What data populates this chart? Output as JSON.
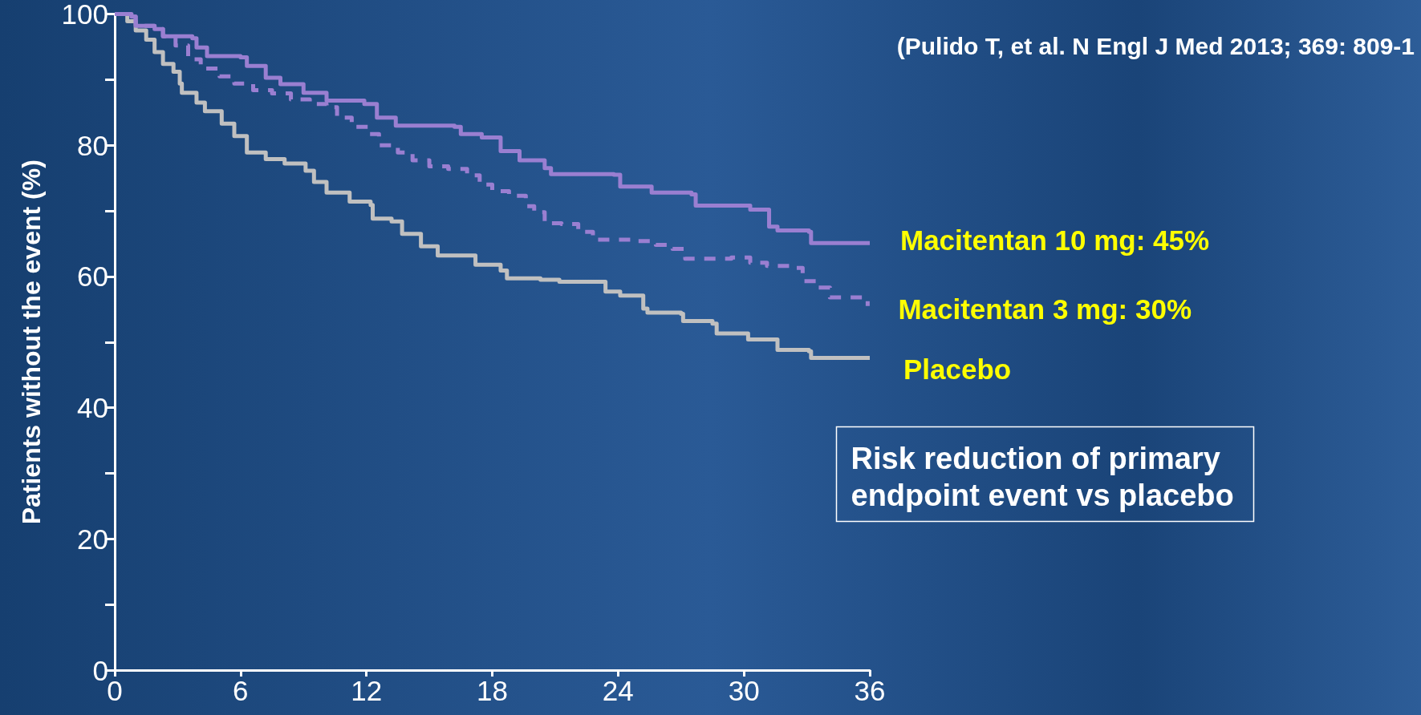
{
  "chart_data": {
    "type": "step",
    "ylabel": "Patients without the event (%)",
    "xlim": [
      0,
      36
    ],
    "xticks": [
      0,
      6,
      12,
      18,
      24,
      30,
      36
    ],
    "ylim": [
      0,
      100
    ],
    "yticks": [
      0,
      {
        "value": 10,
        "label": null
      },
      20,
      {
        "value": 30,
        "label": null
      },
      40,
      {
        "value": 50,
        "label": null
      },
      60,
      {
        "value": 70,
        "label": null
      },
      80,
      {
        "value": 90,
        "label": null
      },
      100
    ],
    "grid": false,
    "legend": false,
    "marker": "none",
    "annotations": [
      "(Pulido T, et al. N Engl J Med 2013; 369: 809-1",
      "Risk reduction of primary endpoint event vs placebo"
    ],
    "series": [
      {
        "name": "Macitentan 10 mg: 45%",
        "color": "#9a7fd1",
        "line_style": "solid",
        "x": [
          0,
          0.8,
          1.0,
          1.9,
          2.3,
          3.7,
          3.9,
          4.4,
          6.0,
          6.3,
          7.2,
          7.9,
          9.0,
          10.1,
          11.9,
          12.5,
          13.4,
          16.2,
          16.5,
          17.5,
          18.4,
          19.3,
          20.5,
          20.8,
          23.8,
          24.1,
          25.6,
          27.5,
          27.7,
          30.3,
          31.2,
          31.6,
          33.1,
          33.2,
          36.0
        ],
        "values": [
          100,
          99.6,
          98.2,
          97.7,
          96.6,
          96.3,
          94.9,
          93.6,
          93.4,
          92.1,
          90.3,
          89.3,
          88,
          86.8,
          86.3,
          84.2,
          83,
          82.8,
          81.7,
          81.2,
          79.1,
          77.7,
          76.5,
          75.6,
          75.5,
          73.7,
          72.8,
          72.5,
          70.8,
          70.2,
          67.6,
          67,
          66.8,
          65.1,
          65.1
        ]
      },
      {
        "name": "Macitentan 3 mg: 30%",
        "color": "#9a7fd1",
        "line_style": "dashed",
        "x": [
          0,
          0.8,
          1.0,
          1.9,
          2.3,
          2.9,
          3.5,
          4.1,
          5.0,
          5.7,
          6.6,
          7.5,
          8.4,
          9.3,
          10.1,
          10.6,
          11.3,
          12.1,
          12.6,
          13.5,
          14.2,
          15.0,
          15.9,
          16.8,
          17.4,
          18.0,
          18.8,
          19.6,
          20.0,
          20.5,
          21.3,
          22.1,
          22.8,
          24.9,
          25.8,
          26.6,
          27.2,
          29.4,
          30.3,
          31.1,
          32.3,
          32.8,
          33.5,
          34.1,
          35.2,
          35.9
        ],
        "values": [
          100,
          99.6,
          98.2,
          97.7,
          96.6,
          95.2,
          93.1,
          91.7,
          90.5,
          89.4,
          88.4,
          87.9,
          87,
          86.3,
          85.8,
          84.2,
          82.8,
          81.7,
          80,
          78.9,
          77.7,
          76.8,
          76.4,
          75.4,
          74,
          73,
          72.3,
          70.7,
          69.8,
          68.1,
          68,
          66.8,
          65.6,
          65.4,
          64.8,
          64.2,
          62.7,
          62.9,
          62.1,
          61.6,
          61.3,
          59.3,
          58.3,
          56.8,
          56.8,
          55.5
        ]
      },
      {
        "name": "Placebo",
        "color": "#c0c0c0",
        "line_style": "solid",
        "x": [
          0,
          0.6,
          1.0,
          1.5,
          1.9,
          2.3,
          2.8,
          3.1,
          3.2,
          3.9,
          4.3,
          5.1,
          5.7,
          6.3,
          7.2,
          8.1,
          9.1,
          9.5,
          10.1,
          11.2,
          12.2,
          12.3,
          13.2,
          13.7,
          14.6,
          15.4,
          17.2,
          18.4,
          18.7,
          20.3,
          21.2,
          23.1,
          23.4,
          24.1,
          25.2,
          25.4,
          27.0,
          27.1,
          28.5,
          28.7,
          30.0,
          30.2,
          31.2,
          31.6,
          33.1,
          33.2,
          36.0
        ],
        "values": [
          100,
          98.9,
          97.5,
          96.1,
          94.2,
          92.4,
          91.2,
          89.4,
          88,
          86.5,
          85.2,
          83.3,
          81.4,
          78.9,
          77.9,
          77.2,
          76.1,
          74.4,
          72.8,
          71.4,
          70.9,
          68.8,
          68.4,
          66.5,
          64.6,
          63.2,
          61.8,
          60.9,
          59.7,
          59.5,
          59.2,
          59.2,
          57.7,
          57.1,
          55.1,
          54.5,
          54.3,
          53.2,
          52.8,
          51.3,
          51.3,
          50.4,
          50.4,
          48.8,
          48.6,
          47.6,
          47.6
        ]
      }
    ]
  }
}
